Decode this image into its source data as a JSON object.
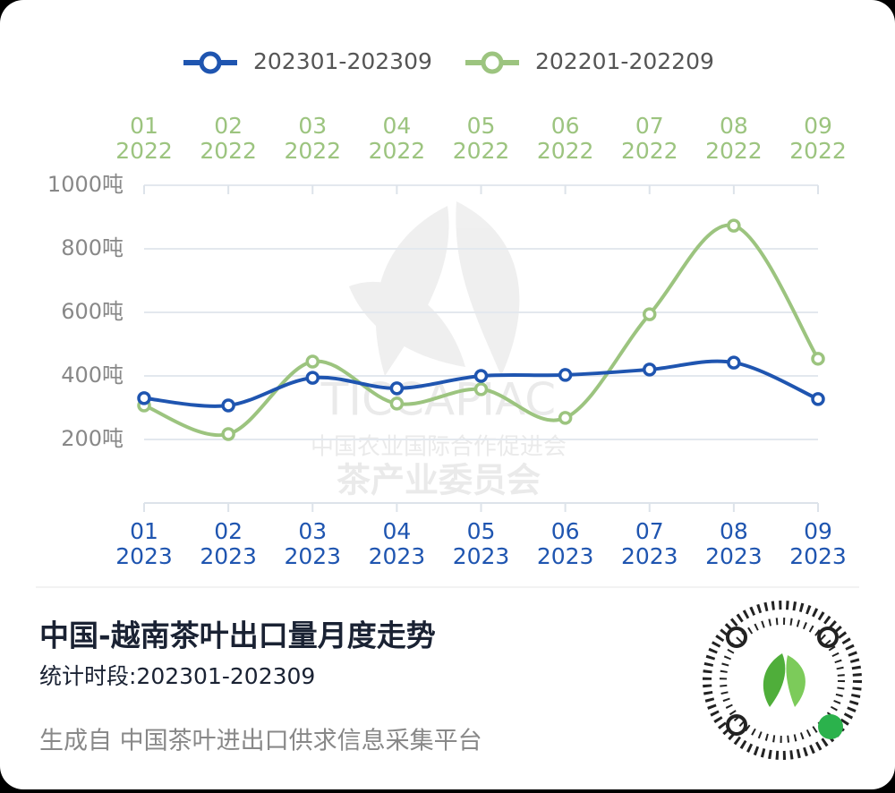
{
  "chart_data": {
    "type": "line",
    "title": "中国-越南茶叶出口量月度走势",
    "subtitle": "统计时段:202301-202309",
    "footer": "生成自  中国茶叶进出口供求信息采集平台",
    "watermark": [
      "TICCAPIAC",
      "中国农业国际合作促进会",
      "茶产业委员会"
    ],
    "categories": [
      [
        "01",
        "2023"
      ],
      [
        "02",
        "2023"
      ],
      [
        "03",
        "2023"
      ],
      [
        "04",
        "2023"
      ],
      [
        "05",
        "2023"
      ],
      [
        "06",
        "2023"
      ],
      [
        "07",
        "2023"
      ],
      [
        "08",
        "2023"
      ],
      [
        "09",
        "2023"
      ]
    ],
    "categories_top": [
      [
        "01",
        "2022"
      ],
      [
        "02",
        "2022"
      ],
      [
        "03",
        "2022"
      ],
      [
        "04",
        "2022"
      ],
      [
        "05",
        "2022"
      ],
      [
        "06",
        "2022"
      ],
      [
        "07",
        "2022"
      ],
      [
        "08",
        "2022"
      ],
      [
        "09",
        "2022"
      ]
    ],
    "series": [
      {
        "name": "202301-202309",
        "color": "#1f55b0",
        "values": [
          330,
          307,
          394,
          361,
          400,
          403,
          420,
          442,
          327
        ]
      },
      {
        "name": "202201-202209",
        "color": "#9cc47f",
        "values": [
          307,
          217,
          445,
          313,
          358,
          268,
          594,
          873,
          454
        ]
      }
    ],
    "ylim": [
      0,
      1000
    ],
    "yticks": [
      {
        "value": 200,
        "label": "200吨"
      },
      {
        "value": 400,
        "label": "400吨"
      },
      {
        "value": 600,
        "label": "600吨"
      },
      {
        "value": 800,
        "label": "800吨"
      },
      {
        "value": 1000,
        "label": "1000吨"
      }
    ],
    "grid": true
  }
}
